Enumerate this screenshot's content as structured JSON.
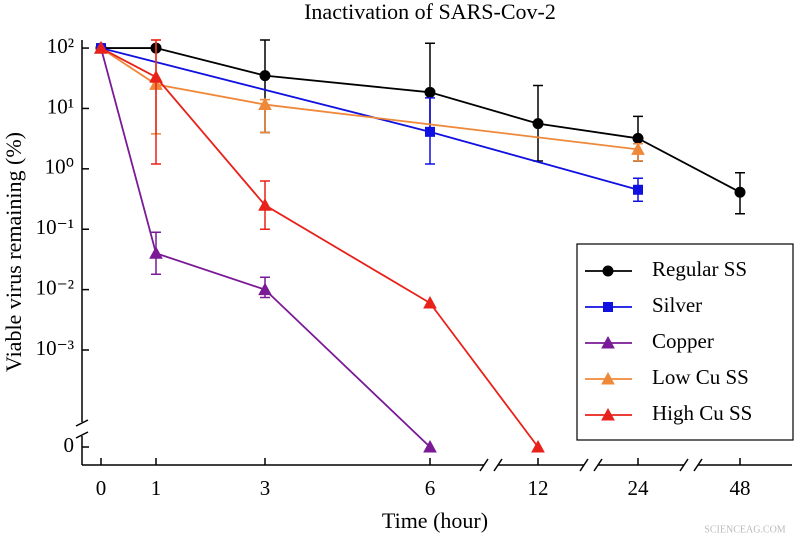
{
  "chart_data": {
    "type": "line",
    "title": "Inactivation of SARS-Cov-2",
    "x_label": "Time (hour)",
    "y_label": "Viable virus remaining (%)",
    "watermark": "SCIENCEAG.COM",
    "y_scale": "log",
    "xlim": [
      -0.35,
      60
    ],
    "xticks": [
      0,
      1,
      3,
      6,
      12,
      24,
      48
    ],
    "ylim": [
      0,
      136
    ],
    "yticks": [
      0,
      {
        "value": 0.001,
        "label": "10⁻³"
      },
      {
        "value": 0.01,
        "label": "10⁻²"
      },
      {
        "value": 0.1,
        "label": "10⁻¹"
      },
      {
        "value": 1,
        "label": "10⁰"
      },
      {
        "value": 10,
        "label": "10¹"
      },
      {
        "value": 100,
        "label": "10²"
      }
    ],
    "legend_position": "lower right",
    "series": [
      {
        "name": "Regular SS",
        "color": "#000000",
        "marker": "circle",
        "x": [
          0,
          1,
          3,
          6,
          12,
          24,
          48
        ],
        "values": [
          100,
          100,
          35,
          18.5,
          5.6,
          3.2,
          0.41
        ],
        "error_low": [
          null,
          null,
          4,
          4.8,
          1.35,
          1.35,
          0.18
        ],
        "error_high": [
          null,
          null,
          150,
          120,
          24,
          7.4,
          0.86
        ]
      },
      {
        "name": "Silver",
        "color": "#1010e0",
        "marker": "square",
        "x": [
          0,
          6,
          24
        ],
        "values": [
          100,
          4.1,
          0.45
        ],
        "error_low": [
          null,
          1.2,
          0.29
        ],
        "error_high": [
          null,
          15,
          0.7
        ]
      },
      {
        "name": "Copper",
        "color": "#7a1a96",
        "marker": "triangle",
        "x": [
          0,
          1,
          3,
          6
        ],
        "values": [
          100,
          0.04,
          0.01,
          0
        ],
        "error_low": [
          null,
          0.018,
          0.0074,
          null
        ],
        "error_high": [
          null,
          0.089,
          0.016,
          null
        ]
      },
      {
        "name": "Low Cu SS",
        "color": "#f0883a",
        "marker": "triangle",
        "x": [
          0,
          1,
          3,
          24
        ],
        "values": [
          100,
          25,
          11.6,
          2.1
        ],
        "error_low": [
          null,
          3.8,
          4,
          1.36
        ],
        "error_high": [
          null,
          136,
          14,
          2.6
        ]
      },
      {
        "name": "High Cu SS",
        "color": "#e8221a",
        "marker": "triangle",
        "x": [
          0,
          1,
          3,
          6,
          12
        ],
        "values": [
          100,
          33,
          0.25,
          0.006,
          0
        ],
        "error_low": [
          null,
          1.2,
          0.1,
          null,
          null
        ],
        "error_high": [
          null,
          136,
          0.63,
          null,
          null
        ]
      }
    ]
  }
}
